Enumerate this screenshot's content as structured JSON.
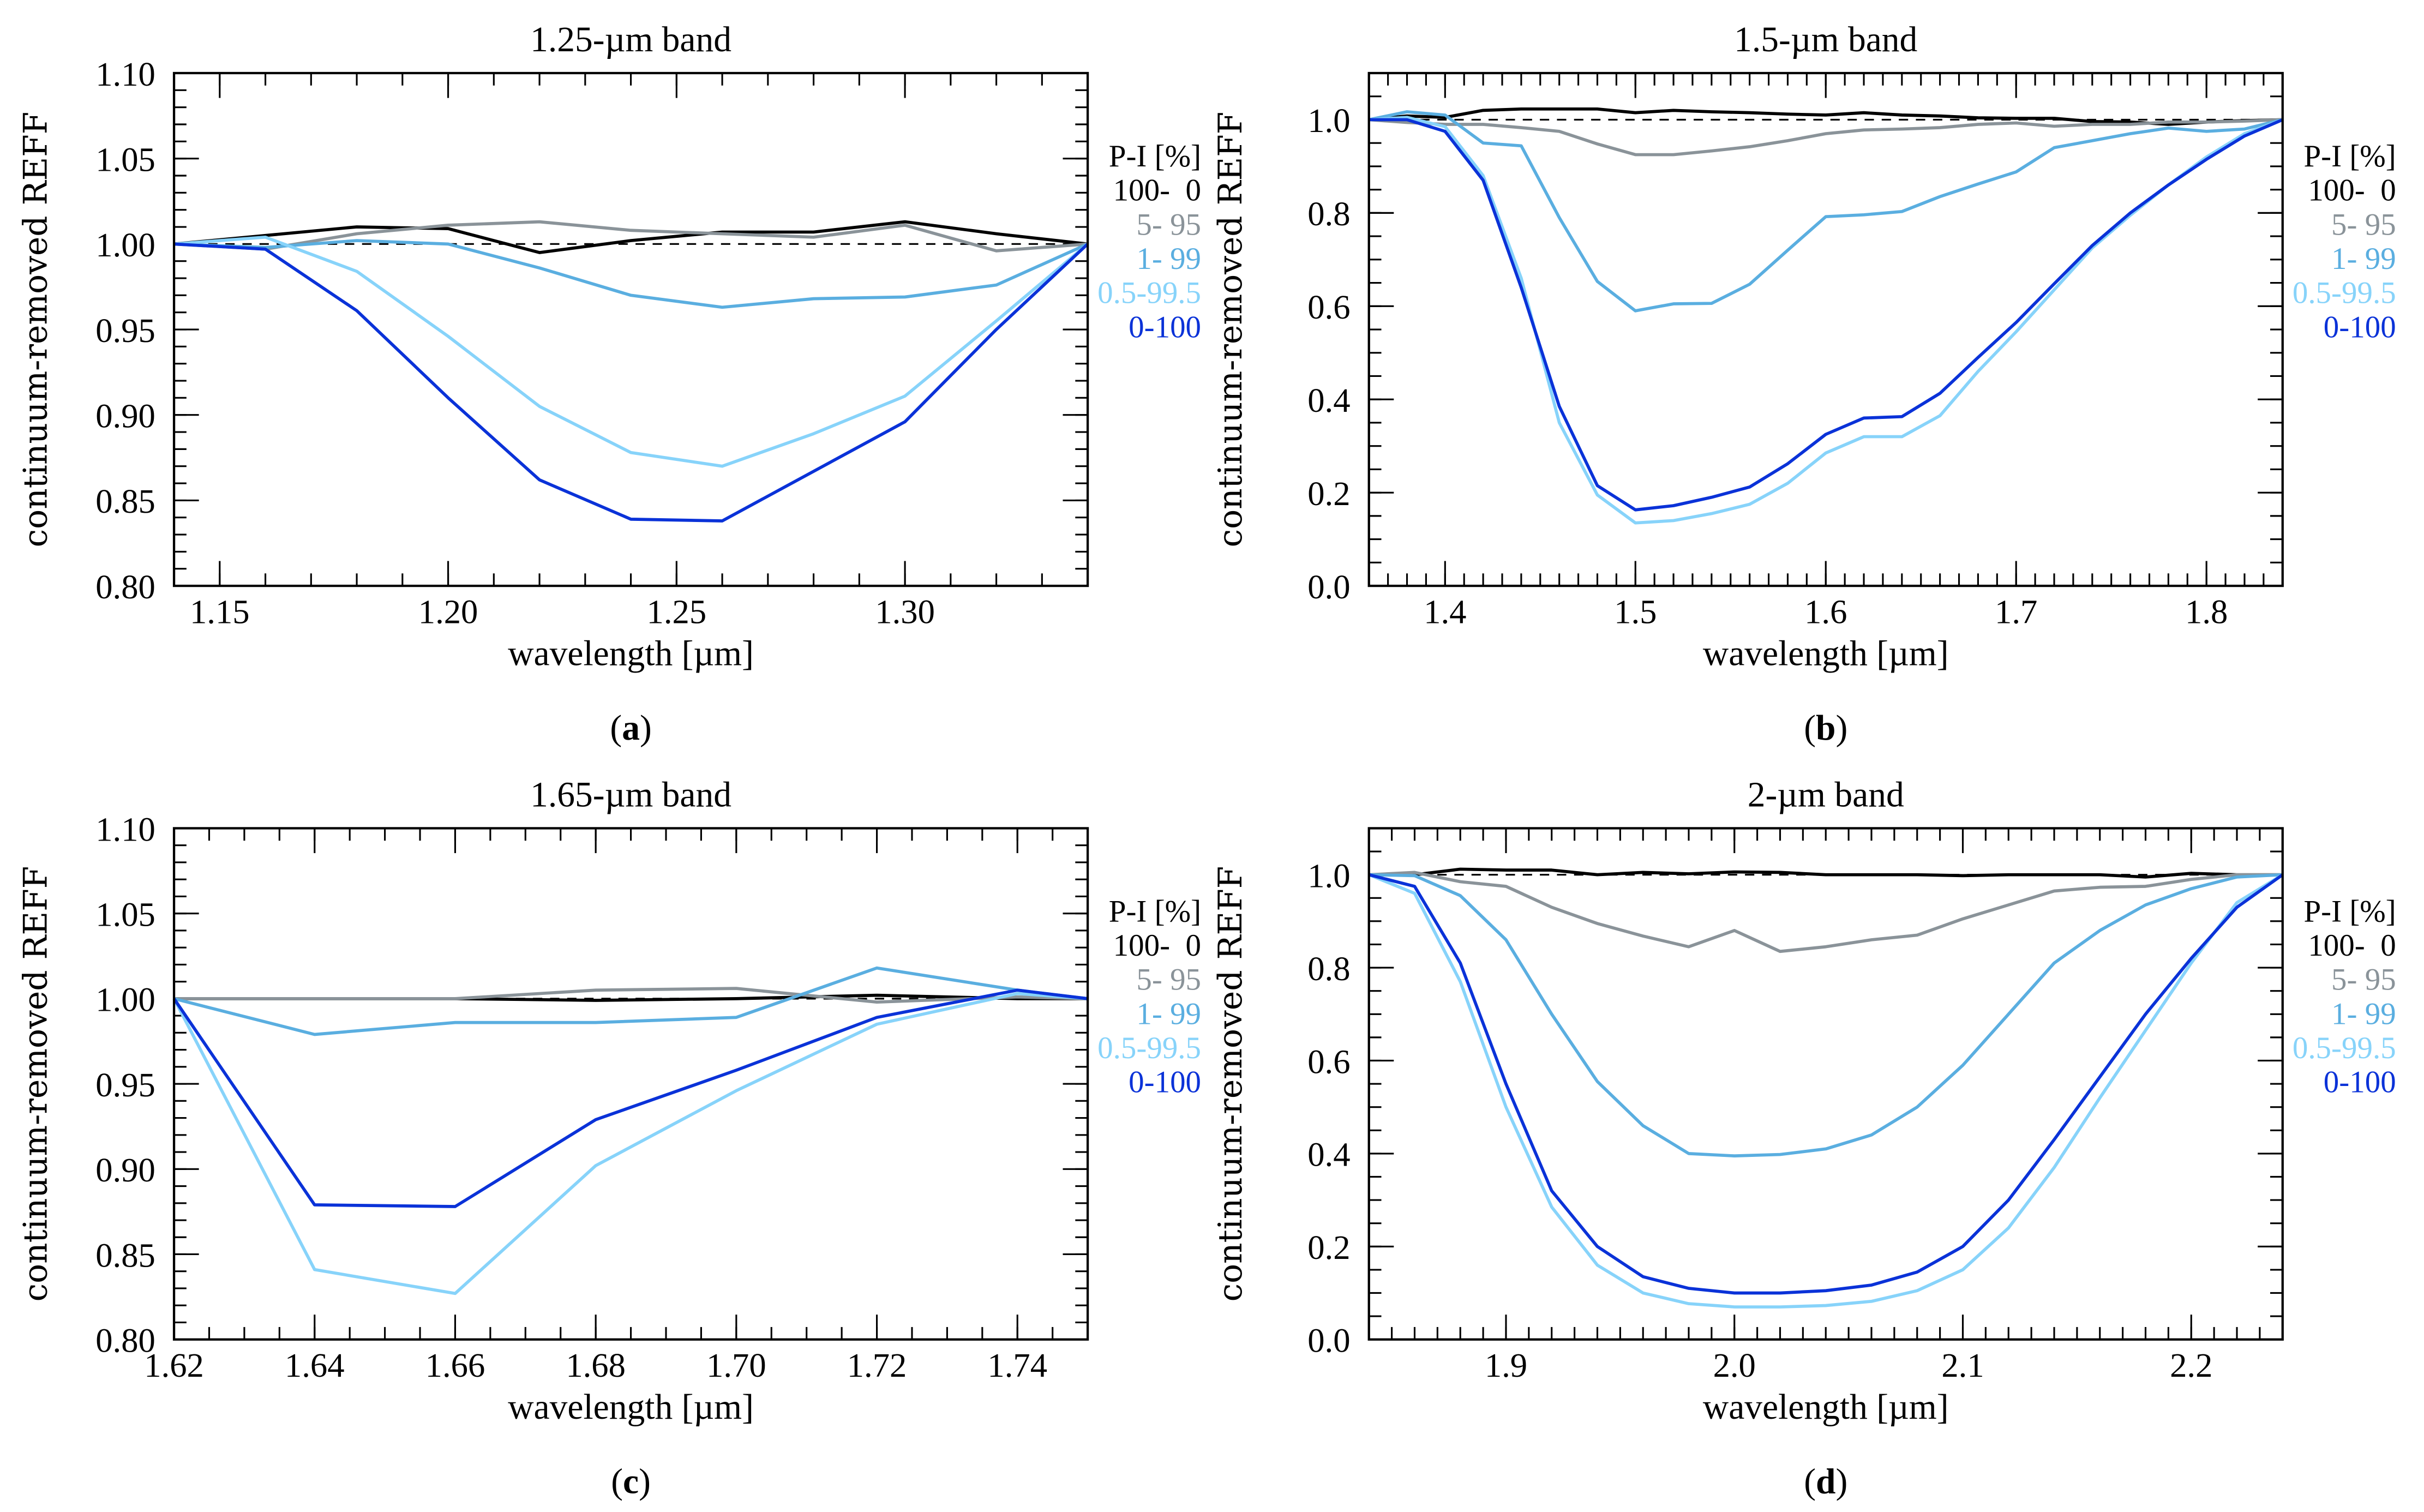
{
  "legend_title": "P-I [%]",
  "series_styles": [
    {
      "name": "100-  0",
      "color": "#000000"
    },
    {
      "name": "5- 95",
      "color": "#8a9399"
    },
    {
      "name": "1- 99",
      "color": "#5aaee0"
    },
    {
      "name": "0.5-99.5",
      "color": "#87d3fa"
    },
    {
      "name": "0-100",
      "color": "#0a32d8"
    }
  ],
  "chart_data": [
    {
      "type": "line",
      "panel": "(a)",
      "panel_letter": "a",
      "title": "1.25-µm band",
      "xlabel": "wavelength [µm]",
      "ylabel": "continuum-removed REFF",
      "xlim": [
        1.14,
        1.34
      ],
      "ylim": [
        0.8,
        1.1
      ],
      "xticks": [
        "1.15",
        "1.20",
        "1.25",
        "1.30"
      ],
      "yticks": [
        "0.80",
        "0.85",
        "0.90",
        "0.95",
        "1.00",
        "1.05",
        "1.10"
      ],
      "x_minor_step": 0.01,
      "y_minor_step": 0.01,
      "reference_line": 1.0,
      "x": [
        1.14,
        1.16,
        1.18,
        1.2,
        1.22,
        1.24,
        1.26,
        1.28,
        1.3,
        1.32,
        1.34
      ],
      "series": [
        {
          "name": "100-  0",
          "values": [
            1.0,
            1.005,
            1.01,
            1.009,
            0.995,
            1.002,
            1.007,
            1.007,
            1.013,
            1.006,
            1.0
          ]
        },
        {
          "name": "5- 95",
          "values": [
            1.0,
            0.997,
            1.006,
            1.011,
            1.013,
            1.008,
            1.006,
            1.004,
            1.011,
            0.996,
            1.0
          ]
        },
        {
          "name": "1- 99",
          "values": [
            1.0,
            0.998,
            1.002,
            1.0,
            0.986,
            0.97,
            0.963,
            0.968,
            0.969,
            0.976,
            1.0
          ]
        },
        {
          "name": "0.5-99.5",
          "values": [
            1.0,
            1.004,
            0.984,
            0.946,
            0.905,
            0.878,
            0.87,
            0.889,
            0.911,
            0.955,
            1.0
          ]
        },
        {
          "name": "0-100",
          "values": [
            1.0,
            0.997,
            0.961,
            0.91,
            0.862,
            0.839,
            0.838,
            0.867,
            0.896,
            0.95,
            1.0
          ]
        }
      ]
    },
    {
      "type": "line",
      "panel": "(b)",
      "panel_letter": "b",
      "title": "1.5-µm band",
      "xlabel": "wavelength [µm]",
      "ylabel": "continuum-removed REFF",
      "xlim": [
        1.36,
        1.84
      ],
      "ylim": [
        0.0,
        1.1
      ],
      "xticks": [
        "1.4",
        "1.5",
        "1.6",
        "1.7",
        "1.8"
      ],
      "yticks": [
        "0.0",
        "0.2",
        "0.4",
        "0.6",
        "0.8",
        "1.0"
      ],
      "x_minor_step": 0.01,
      "y_minor_step": 0.05,
      "reference_line": 1.0,
      "x": [
        1.36,
        1.38,
        1.4,
        1.42,
        1.44,
        1.46,
        1.48,
        1.5,
        1.52,
        1.54,
        1.56,
        1.58,
        1.6,
        1.62,
        1.64,
        1.66,
        1.68,
        1.7,
        1.72,
        1.74,
        1.76,
        1.78,
        1.8,
        1.82,
        1.84
      ],
      "series": [
        {
          "name": "100-  0",
          "values": [
            1.0,
            1.008,
            1.005,
            1.02,
            1.023,
            1.023,
            1.023,
            1.015,
            1.02,
            1.017,
            1.015,
            1.012,
            1.01,
            1.015,
            1.01,
            1.008,
            1.004,
            1.003,
            1.003,
            0.996,
            0.995,
            0.99,
            0.995,
            0.998,
            1.0
          ]
        },
        {
          "name": "5- 95",
          "values": [
            1.0,
            0.994,
            0.99,
            0.99,
            0.983,
            0.975,
            0.948,
            0.925,
            0.925,
            0.933,
            0.942,
            0.955,
            0.97,
            0.978,
            0.98,
            0.983,
            0.99,
            0.993,
            0.986,
            0.99,
            0.99,
            0.995,
            0.995,
            0.997,
            1.0
          ]
        },
        {
          "name": "1- 99",
          "values": [
            1.0,
            1.017,
            1.01,
            0.95,
            0.944,
            0.79,
            0.653,
            0.59,
            0.605,
            0.606,
            0.647,
            0.72,
            0.792,
            0.796,
            0.803,
            0.835,
            0.862,
            0.888,
            0.94,
            0.955,
            0.97,
            0.982,
            0.975,
            0.98,
            1.0
          ]
        },
        {
          "name": "0.5-99.5",
          "values": [
            1.0,
            1.005,
            0.985,
            0.88,
            0.66,
            0.35,
            0.195,
            0.135,
            0.14,
            0.155,
            0.175,
            0.22,
            0.285,
            0.32,
            0.32,
            0.365,
            0.46,
            0.545,
            0.635,
            0.725,
            0.795,
            0.86,
            0.92,
            0.97,
            1.0
          ]
        },
        {
          "name": "0-100",
          "values": [
            1.0,
            1.0,
            0.975,
            0.87,
            0.64,
            0.385,
            0.215,
            0.163,
            0.172,
            0.19,
            0.212,
            0.262,
            0.325,
            0.36,
            0.363,
            0.413,
            0.49,
            0.565,
            0.648,
            0.73,
            0.8,
            0.86,
            0.915,
            0.965,
            1.0
          ]
        }
      ]
    },
    {
      "type": "line",
      "panel": "(c)",
      "panel_letter": "c",
      "title": "1.65-µm band",
      "xlabel": "wavelength [µm]",
      "ylabel": "continuum-removed REFF",
      "xlim": [
        1.62,
        1.75
      ],
      "ylim": [
        0.8,
        1.1
      ],
      "xticks": [
        "1.62",
        "1.64",
        "1.66",
        "1.68",
        "1.70",
        "1.72",
        "1.74"
      ],
      "yticks": [
        "0.80",
        "0.85",
        "0.90",
        "0.95",
        "1.00",
        "1.05",
        "1.10"
      ],
      "x_minor_step": 0.005,
      "y_minor_step": 0.01,
      "reference_line": 1.0,
      "x": [
        1.62,
        1.64,
        1.66,
        1.68,
        1.7,
        1.72,
        1.74,
        1.75
      ],
      "series": [
        {
          "name": "100-  0",
          "values": [
            1.0,
            1.0,
            1.0,
            0.999,
            1.0,
            1.002,
            1.0,
            1.0
          ]
        },
        {
          "name": "5- 95",
          "values": [
            1.0,
            1.0,
            1.0,
            1.005,
            1.006,
            0.998,
            1.001,
            1.0
          ]
        },
        {
          "name": "1- 99",
          "values": [
            1.0,
            0.979,
            0.986,
            0.986,
            0.989,
            1.018,
            1.005,
            1.0
          ]
        },
        {
          "name": "0.5-99.5",
          "values": [
            1.0,
            0.841,
            0.827,
            0.902,
            0.946,
            0.985,
            1.003,
            1.0
          ]
        },
        {
          "name": "0-100",
          "values": [
            1.0,
            0.879,
            0.878,
            0.929,
            0.958,
            0.989,
            1.005,
            1.0
          ]
        }
      ]
    },
    {
      "type": "line",
      "panel": "(d)",
      "panel_letter": "d",
      "title": "2-µm band",
      "xlabel": "wavelength [µm]",
      "ylabel": "continuum-removed REFF",
      "xlim": [
        1.84,
        2.24
      ],
      "ylim": [
        0.0,
        1.1
      ],
      "xticks": [
        "1.9",
        "2.0",
        "2.1",
        "2.2"
      ],
      "yticks": [
        "0.0",
        "0.2",
        "0.4",
        "0.6",
        "0.8",
        "1.0"
      ],
      "x_minor_step": 0.01,
      "y_minor_step": 0.05,
      "reference_line": 1.0,
      "x": [
        1.84,
        1.86,
        1.88,
        1.9,
        1.92,
        1.94,
        1.96,
        1.98,
        2.0,
        2.02,
        2.04,
        2.06,
        2.08,
        2.1,
        2.12,
        2.14,
        2.16,
        2.18,
        2.2,
        2.22,
        2.24
      ],
      "series": [
        {
          "name": "100-  0",
          "values": [
            1.0,
            1.0,
            1.012,
            1.01,
            1.01,
            1.0,
            1.005,
            1.002,
            1.006,
            1.005,
            1.0,
            1.0,
            1.0,
            0.998,
            1.0,
            1.0,
            1.0,
            0.995,
            1.003,
            1.0,
            1.0
          ]
        },
        {
          "name": "5- 95",
          "values": [
            1.0,
            1.005,
            0.985,
            0.975,
            0.93,
            0.895,
            0.868,
            0.845,
            0.88,
            0.835,
            0.845,
            0.86,
            0.87,
            0.905,
            0.935,
            0.965,
            0.973,
            0.975,
            0.99,
            1.0,
            1.0
          ]
        },
        {
          "name": "1- 99",
          "values": [
            1.0,
            0.998,
            0.955,
            0.86,
            0.7,
            0.555,
            0.46,
            0.4,
            0.395,
            0.398,
            0.41,
            0.44,
            0.5,
            0.59,
            0.7,
            0.81,
            0.88,
            0.935,
            0.97,
            0.995,
            1.0
          ]
        },
        {
          "name": "0.5-99.5",
          "values": [
            1.0,
            0.96,
            0.77,
            0.5,
            0.285,
            0.16,
            0.1,
            0.077,
            0.07,
            0.07,
            0.073,
            0.082,
            0.105,
            0.15,
            0.24,
            0.37,
            0.52,
            0.665,
            0.81,
            0.94,
            1.0
          ]
        },
        {
          "name": "0-100",
          "values": [
            1.0,
            0.975,
            0.81,
            0.55,
            0.32,
            0.2,
            0.135,
            0.11,
            0.1,
            0.1,
            0.105,
            0.117,
            0.145,
            0.2,
            0.3,
            0.43,
            0.565,
            0.7,
            0.82,
            0.93,
            1.0
          ]
        }
      ]
    }
  ]
}
